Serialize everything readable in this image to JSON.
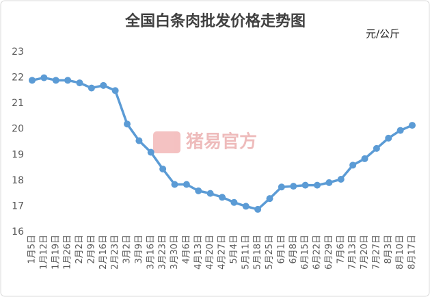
{
  "chart_data": {
    "type": "line",
    "title": "全国白条肉批发价格走势图",
    "unit": "元/公斤",
    "watermark": "猪易官方",
    "categories": [
      "1月5日",
      "1月12日",
      "1月19日",
      "1月26日",
      "2月2日",
      "2月9日",
      "2月16日",
      "2月23日",
      "3月2日",
      "3月9日",
      "3月16日",
      "3月23日",
      "3月30日",
      "4月6日",
      "4月13日",
      "4月20日",
      "4月27日",
      "5月4日",
      "5月11日",
      "5月18日",
      "5月25日",
      "6月1日",
      "6月8日",
      "6月15日",
      "6月22日",
      "6月29日",
      "7月6日",
      "7月13日",
      "7月20日",
      "7月27日",
      "8月3日",
      "8月10日",
      "8月17日"
    ],
    "values": [
      21.9,
      22.0,
      21.9,
      21.9,
      21.8,
      21.6,
      21.7,
      21.5,
      20.2,
      19.55,
      19.1,
      18.45,
      17.85,
      17.85,
      17.6,
      17.5,
      17.35,
      17.15,
      17.0,
      16.88,
      17.3,
      17.75,
      17.78,
      17.82,
      17.82,
      17.92,
      18.05,
      18.6,
      18.85,
      19.25,
      19.65,
      19.95,
      20.15
    ],
    "color": "#5b9bd5",
    "ylim": [
      16,
      23
    ],
    "yticks": [
      16,
      17,
      18,
      19,
      20,
      21,
      22,
      23
    ]
  }
}
